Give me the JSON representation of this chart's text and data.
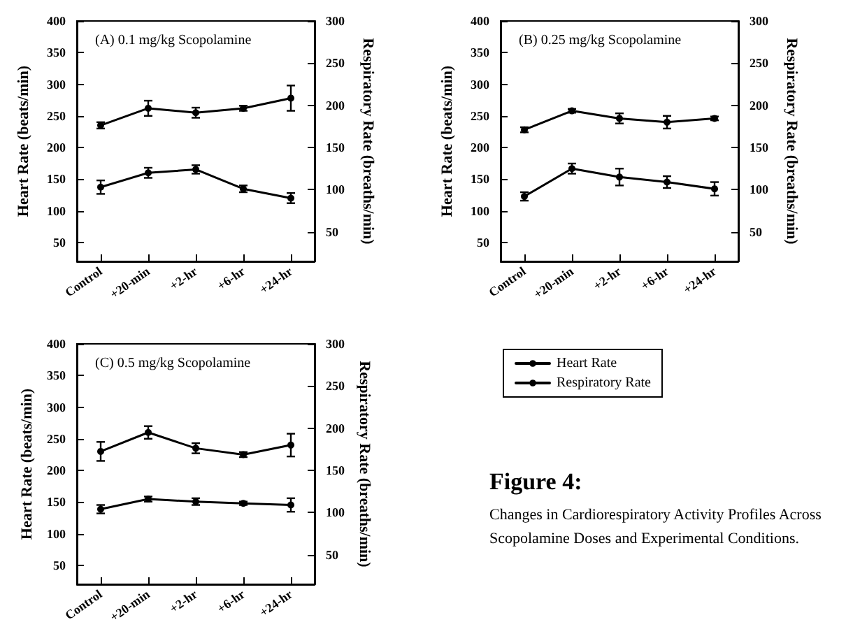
{
  "chart_data": [
    {
      "type": "line",
      "title": "(A) 0.1 mg/kg Scopolamine",
      "ylabel": "Heart Rate (beats/min)",
      "y2label": "Respiratory Rate (breaths/min)",
      "categories": [
        "Control",
        "+20-min",
        "+2-hr",
        "+6-hr",
        "+24-hr"
      ],
      "series": [
        {
          "color": "#000000",
          "values": [
            235,
            262,
            255,
            262,
            278
          ],
          "errors": [
            5,
            12,
            8,
            4,
            20
          ]
        },
        {
          "color": "#000000",
          "axis": "y2",
          "values": [
            103,
            120,
            124,
            101,
            90
          ],
          "errors": [
            8,
            6,
            5,
            4,
            6
          ]
        }
      ],
      "ylim": [
        20,
        400
      ],
      "yticks": [
        50,
        100,
        150,
        200,
        250,
        300,
        350,
        400
      ],
      "y2lim": [
        15,
        300
      ],
      "y2ticks": [
        50,
        100,
        150,
        200,
        250,
        300
      ],
      "marker": "circle",
      "line_style": "solid"
    },
    {
      "type": "line",
      "title": "(B) 0.25 mg/kg Scopolamine",
      "ylabel": "Heart Rate (beats/min)",
      "y2label": "Respiratory Rate (breaths/min)",
      "categories": [
        "Control",
        "+20-min",
        "+2-hr",
        "+6-hr",
        "+24-hr"
      ],
      "series": [
        {
          "color": "#000000",
          "values": [
            228,
            258,
            246,
            240,
            246
          ],
          "errors": [
            4,
            3,
            8,
            10,
            3
          ]
        },
        {
          "color": "#000000",
          "axis": "y2",
          "values": [
            92,
            125,
            115,
            109,
            101
          ],
          "errors": [
            5,
            6,
            10,
            7,
            8
          ]
        }
      ],
      "ylim": [
        20,
        400
      ],
      "yticks": [
        50,
        100,
        150,
        200,
        250,
        300,
        350,
        400
      ],
      "y2lim": [
        15,
        300
      ],
      "y2ticks": [
        50,
        100,
        150,
        200,
        250,
        300
      ],
      "marker": "circle",
      "line_style": "solid"
    },
    {
      "type": "line",
      "title": "(C) 0.5 mg/kg Scopolamine",
      "ylabel": "Heart Rate (beats/min)",
      "y2label": "Respiratory Rate (breaths/min)",
      "categories": [
        "Control",
        "+20-min",
        "+2-hr",
        "+6-hr",
        "+24-hr"
      ],
      "series": [
        {
          "name": "Heart Rate",
          "color": "#000000",
          "values": [
            230,
            260,
            235,
            225,
            240
          ],
          "errors": [
            15,
            10,
            8,
            4,
            18
          ]
        },
        {
          "name": "Respiratory Rate",
          "color": "#000000",
          "axis": "y2",
          "values": [
            104,
            116,
            113,
            111,
            109
          ],
          "errors": [
            5,
            3,
            4,
            2,
            8
          ]
        }
      ],
      "ylim": [
        20,
        400
      ],
      "yticks": [
        50,
        100,
        150,
        200,
        250,
        300,
        350,
        400
      ],
      "y2lim": [
        15,
        300
      ],
      "y2ticks": [
        50,
        100,
        150,
        200,
        250,
        300
      ],
      "marker": "circle",
      "line_style": "solid",
      "legend": "right",
      "annotations": [
        "Figure 4:",
        "Changes in Cardiorespiratory Activity Profiles Across Scopolamine Doses and Experimental Conditions."
      ]
    }
  ]
}
